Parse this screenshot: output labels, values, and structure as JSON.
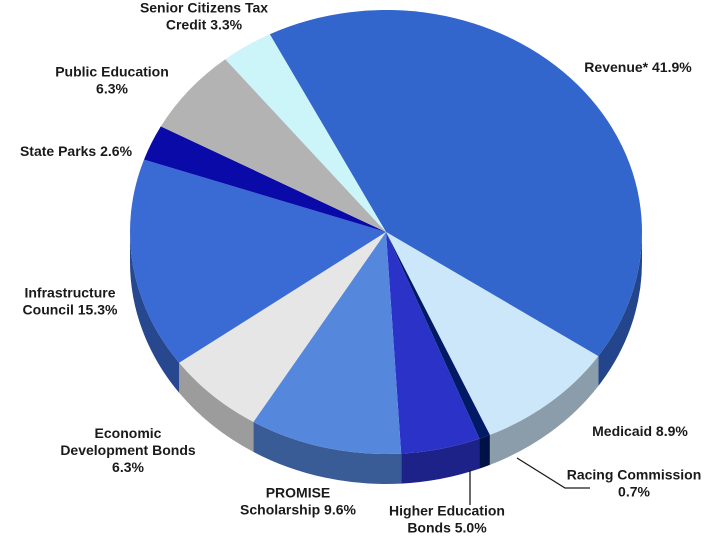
{
  "chart_data": {
    "type": "pie",
    "title": "",
    "slices": [
      {
        "name": "Revenue*",
        "label_lines": [
          "Revenue* 41.9%"
        ],
        "value": 41.9,
        "color": "#3366cc"
      },
      {
        "name": "Medicaid",
        "label_lines": [
          "Medicaid 8.9%"
        ],
        "value": 8.9,
        "color": "#cce6fa"
      },
      {
        "name": "Racing Commission",
        "label_lines": [
          "Racing Commission",
          "0.7%"
        ],
        "value": 0.7,
        "color": "#001a66"
      },
      {
        "name": "Higher Education Bonds",
        "label_lines": [
          "Higher Education",
          "Bonds 5.0%"
        ],
        "value": 5.0,
        "color": "#2b32c8"
      },
      {
        "name": "PROMISE Scholarship",
        "label_lines": [
          "PROMISE",
          "Scholarship 9.6%"
        ],
        "value": 9.6,
        "color": "#5588dd"
      },
      {
        "name": "Economic Development Bonds",
        "label_lines": [
          "Economic",
          "Development Bonds",
          "6.3%"
        ],
        "value": 6.3,
        "color": "#e6e6e6"
      },
      {
        "name": "Infrastructure Council",
        "label_lines": [
          "Infrastructure",
          "Council 15.3%"
        ],
        "value": 15.3,
        "color": "#3a6ad3"
      },
      {
        "name": "State Parks",
        "label_lines": [
          "State Parks 2.6%"
        ],
        "value": 2.6,
        "color": "#0a0aa8"
      },
      {
        "name": "Public Education",
        "label_lines": [
          "Public Education",
          "6.3%"
        ],
        "value": 6.3,
        "color": "#b3b3b3"
      },
      {
        "name": "Senior Citizens Tax Credit",
        "label_lines": [
          "Senior Citizens Tax",
          "Credit 3.3%"
        ],
        "value": 3.3,
        "color": "#ccf5fa"
      }
    ],
    "legend": "none"
  }
}
